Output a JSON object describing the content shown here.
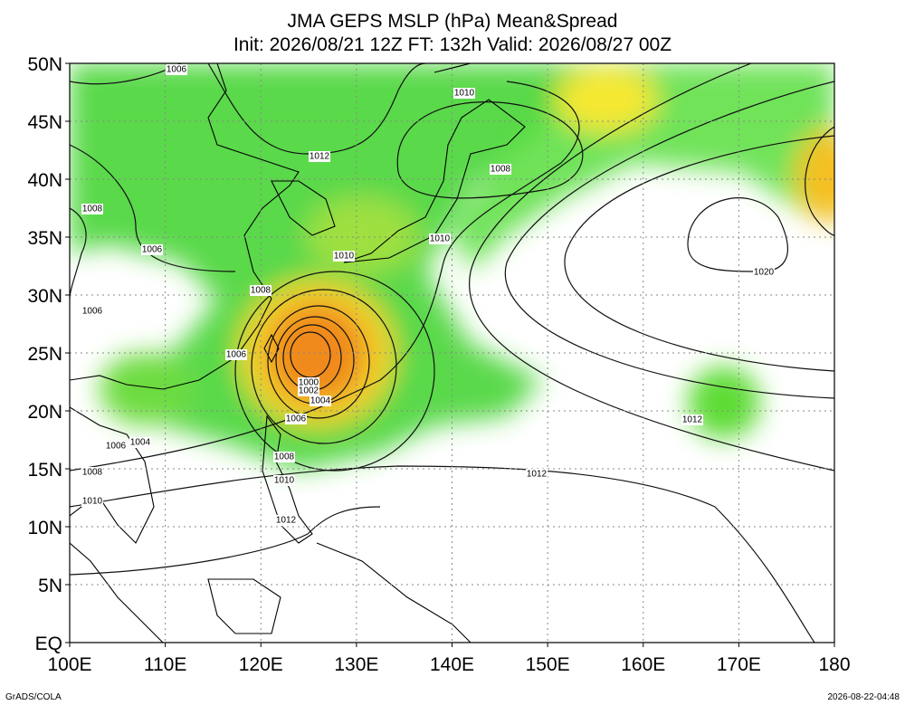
{
  "header": {
    "title": "JMA GEPS MSLP (hPa) Mean&Spread",
    "subtitle": "Init: 2026/08/21 12Z  FT: 132h  Valid: 2026/08/27 00Z"
  },
  "axes": {
    "lat_labels": [
      "50N",
      "45N",
      "40N",
      "35N",
      "30N",
      "25N",
      "20N",
      "15N",
      "10N",
      "5N",
      "EQ"
    ],
    "lon_labels": [
      "100E",
      "110E",
      "120E",
      "130E",
      "140E",
      "150E",
      "160E",
      "170E",
      "180"
    ]
  },
  "contour_labels": [
    "1006",
    "1010",
    "1012",
    "1008",
    "1008",
    "1010",
    "1010",
    "1006",
    "1008",
    "1006",
    "1020",
    "1006",
    "1000",
    "1002",
    "1004",
    "1006",
    "1012",
    "1008",
    "1006",
    "1004",
    "1008",
    "1010",
    "1012",
    "1010",
    "1012"
  ],
  "footer": {
    "left": "GrADS/COLA",
    "right": "2026-08-22-04:48"
  }
}
